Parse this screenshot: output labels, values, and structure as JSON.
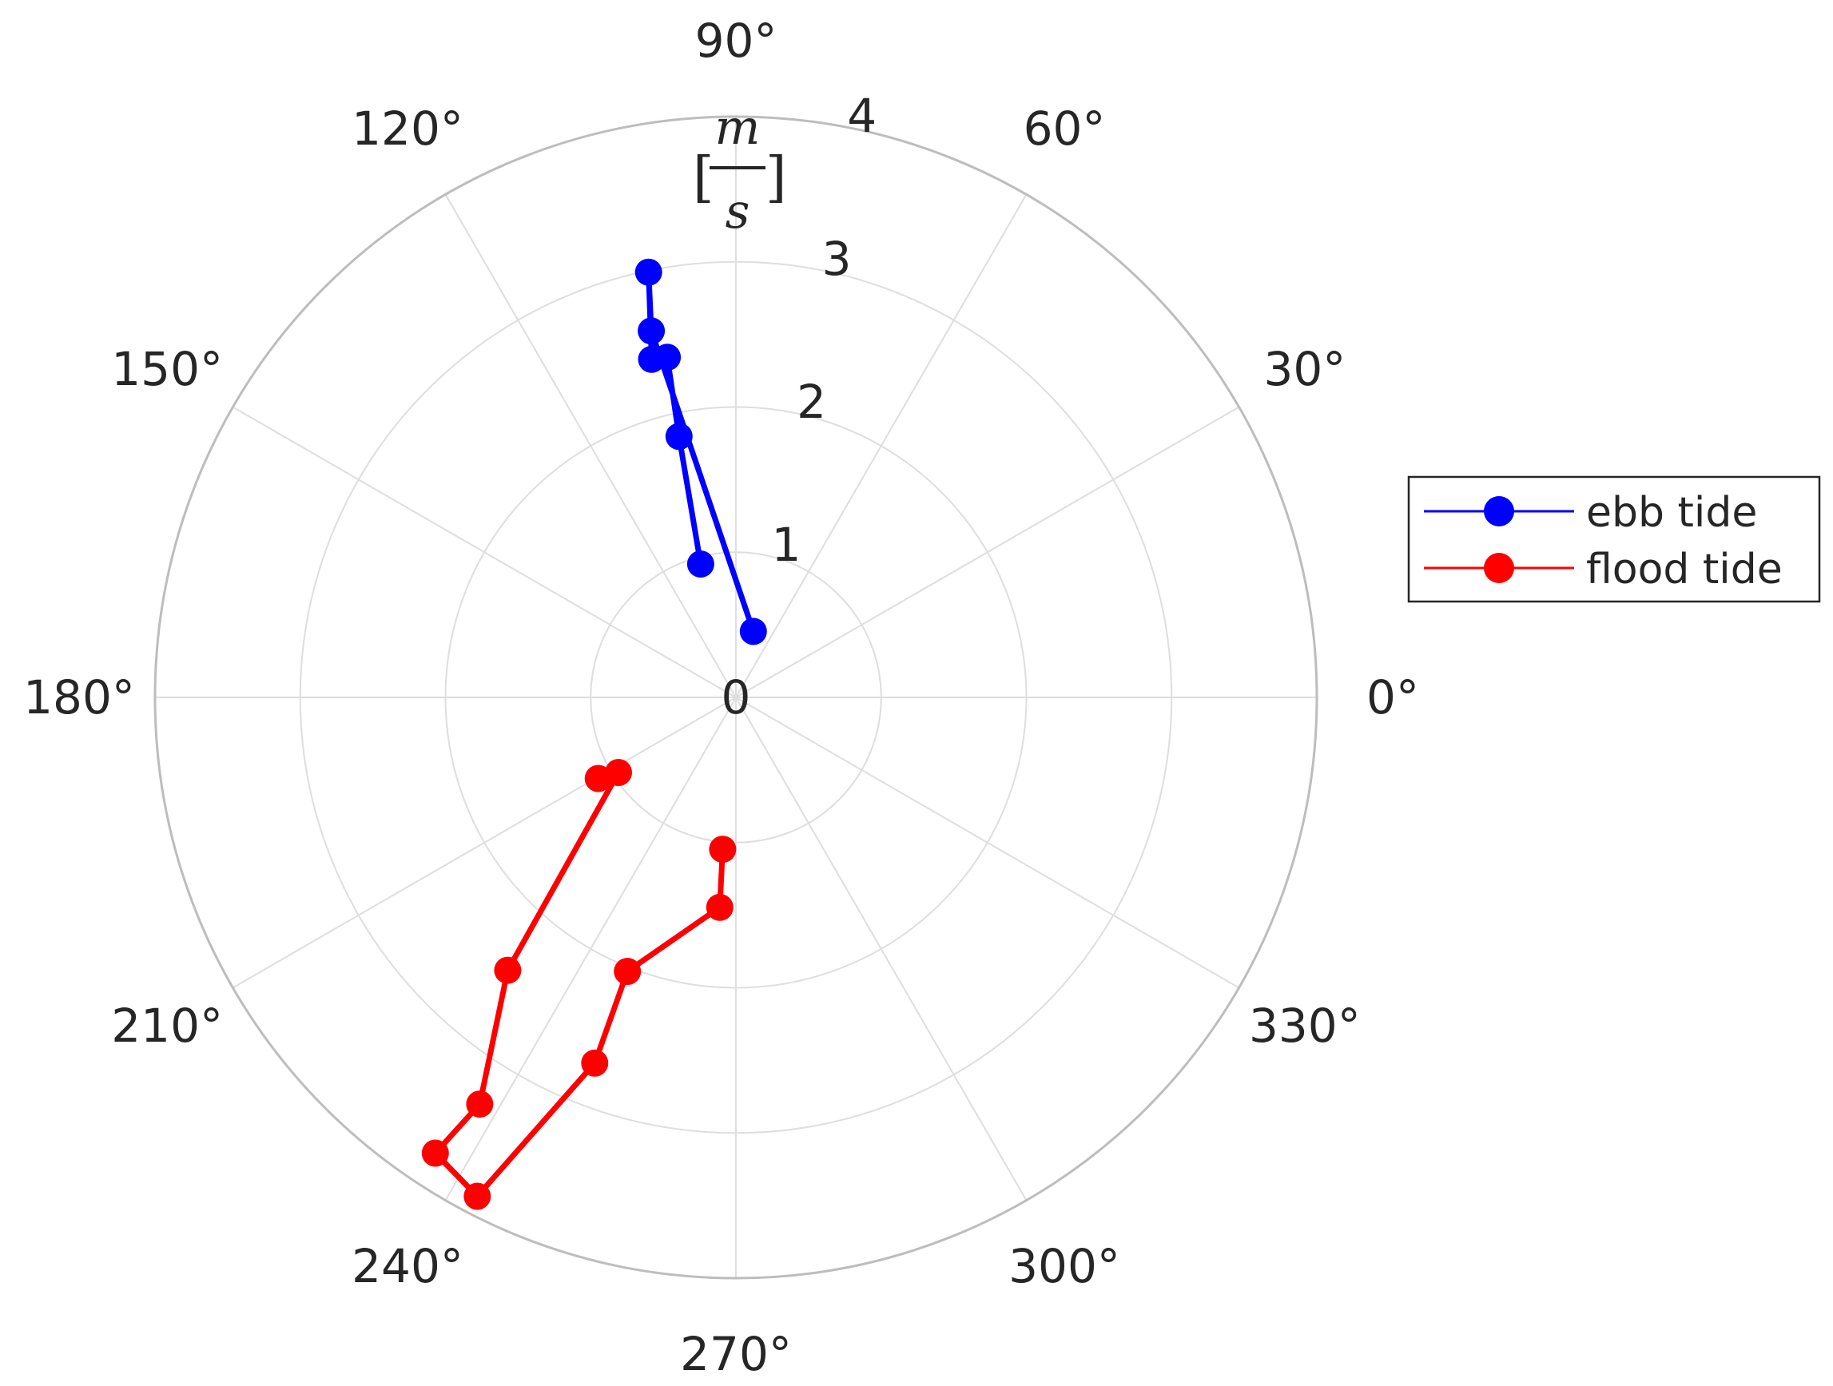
{
  "chart_data": {
    "type": "line",
    "subtype": "polar",
    "title": "",
    "r_axis_unit": {
      "numerator": "m",
      "denominator": "s",
      "open_bracket": "[",
      "close_bracket": "]"
    },
    "r_lim": [
      0,
      4
    ],
    "r_ticks": [
      0,
      1,
      2,
      3,
      4
    ],
    "r_tick_labels": [
      "0",
      "1",
      "2",
      "3",
      "4"
    ],
    "theta_ticks_deg": [
      0,
      30,
      60,
      90,
      120,
      150,
      180,
      210,
      240,
      270,
      300,
      330
    ],
    "theta_tick_labels": [
      "0°",
      "30°",
      "60°",
      "90°",
      "120°",
      "150°",
      "180°",
      "210°",
      "240°",
      "270°",
      "300°",
      "330°"
    ],
    "theta_zero_location": "right",
    "theta_direction": "counterclockwise",
    "grid": true,
    "legend": {
      "position": "right",
      "entries": [
        "ebb tide",
        "flood tide"
      ]
    },
    "series": [
      {
        "name": "ebb tide",
        "color": "#0000ff",
        "points": [
          {
            "theta_deg": 104.8,
            "r": 0.95
          },
          {
            "theta_deg": 102.3,
            "r": 1.84
          },
          {
            "theta_deg": 101.4,
            "r": 2.39
          },
          {
            "theta_deg": 104.0,
            "r": 2.4
          },
          {
            "theta_deg": 101.6,
            "r": 2.99
          },
          {
            "theta_deg": 103.0,
            "r": 2.59
          },
          {
            "theta_deg": 75.2,
            "r": 0.47
          }
        ]
      },
      {
        "name": "flood tide",
        "color": "#ff0000",
        "points": [
          {
            "theta_deg": 210.5,
            "r": 1.1
          },
          {
            "theta_deg": 212.6,
            "r": 0.96
          },
          {
            "theta_deg": 230.1,
            "r": 2.45
          },
          {
            "theta_deg": 237.8,
            "r": 3.31
          },
          {
            "theta_deg": 236.6,
            "r": 3.76
          },
          {
            "theta_deg": 242.6,
            "r": 3.87
          },
          {
            "theta_deg": 248.9,
            "r": 2.7
          },
          {
            "theta_deg": 248.4,
            "r": 2.03
          },
          {
            "theta_deg": 265.6,
            "r": 1.45
          },
          {
            "theta_deg": 265.0,
            "r": 1.05
          }
        ]
      }
    ]
  }
}
